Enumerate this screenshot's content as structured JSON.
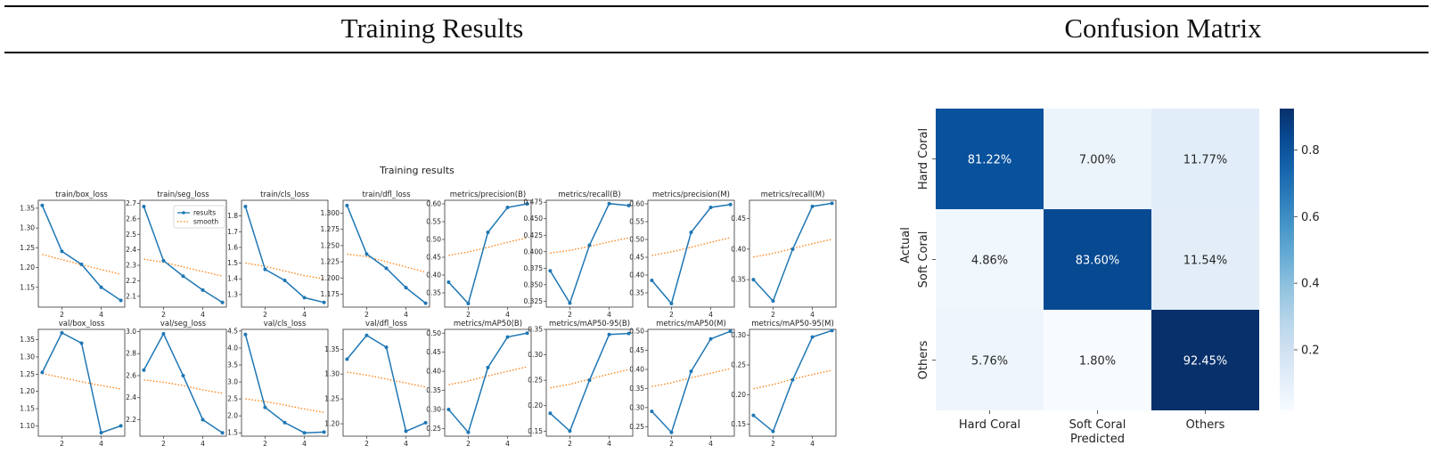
{
  "header": {
    "left_title": "Training Results",
    "right_title": "Confusion Matrix"
  },
  "training": {
    "suptitle": "Training results",
    "legend": [
      "results",
      "smooth"
    ],
    "colors": {
      "results": "#1f77b4",
      "smooth": "#ff7f0e"
    }
  },
  "chart_data": [
    {
      "type": "line",
      "title": "train/box_loss",
      "x": [
        1,
        2,
        3,
        4,
        5
      ],
      "values": [
        1.357,
        1.241,
        1.208,
        1.15,
        1.117
      ],
      "smooth": [
        1.233,
        1.22,
        1.207,
        1.195,
        1.183
      ],
      "xticks": [
        2,
        4
      ],
      "yticks": [
        1.15,
        1.2,
        1.25,
        1.3,
        1.35
      ],
      "ytick_labels": [
        "1.15",
        "1.20",
        "1.25",
        "1.30",
        "1.35"
      ],
      "ylim": [
        1.1,
        1.37
      ]
    },
    {
      "type": "line",
      "title": "train/seg_loss",
      "x": [
        1,
        2,
        3,
        4,
        5
      ],
      "values": [
        2.68,
        2.33,
        2.23,
        2.14,
        2.06
      ],
      "smooth": [
        2.34,
        2.32,
        2.29,
        2.26,
        2.23
      ],
      "xticks": [
        2,
        4
      ],
      "yticks": [
        2.1,
        2.2,
        2.3,
        2.4,
        2.5,
        2.6,
        2.7
      ],
      "ytick_labels": [
        "2.1",
        "2.2",
        "2.3",
        "2.4",
        "2.5",
        "2.6",
        "2.7"
      ],
      "ylim": [
        2.03,
        2.72
      ]
    },
    {
      "type": "line",
      "title": "train/cls_loss",
      "x": [
        1,
        2,
        3,
        4,
        5
      ],
      "values": [
        1.86,
        1.46,
        1.39,
        1.28,
        1.25
      ],
      "smooth": [
        1.5,
        1.48,
        1.45,
        1.42,
        1.4
      ],
      "xticks": [
        2,
        4
      ],
      "yticks": [
        1.3,
        1.4,
        1.5,
        1.6,
        1.7,
        1.8
      ],
      "ytick_labels": [
        "1.3",
        "1.4",
        "1.5",
        "1.6",
        "1.7",
        "1.8"
      ],
      "ylim": [
        1.22,
        1.9
      ]
    },
    {
      "type": "line",
      "title": "train/dfl_loss",
      "x": [
        1,
        2,
        3,
        4,
        5
      ],
      "values": [
        1.312,
        1.237,
        1.215,
        1.185,
        1.161
      ],
      "smooth": [
        1.237,
        1.233,
        1.225,
        1.217,
        1.209
      ],
      "xticks": [
        2,
        4
      ],
      "yticks": [
        1.175,
        1.2,
        1.225,
        1.25,
        1.275,
        1.3
      ],
      "ytick_labels": [
        "1.175",
        "1.200",
        "1.225",
        "1.250",
        "1.275",
        "1.300"
      ],
      "ylim": [
        1.155,
        1.32
      ]
    },
    {
      "type": "line",
      "title": "metrics/precision(B)",
      "x": [
        1,
        2,
        3,
        4,
        5
      ],
      "values": [
        0.38,
        0.32,
        0.52,
        0.59,
        0.6
      ],
      "smooth": [
        0.455,
        0.465,
        0.478,
        0.492,
        0.505
      ],
      "xticks": [
        2,
        4
      ],
      "yticks": [
        0.35,
        0.4,
        0.45,
        0.5,
        0.55,
        0.6
      ],
      "ytick_labels": [
        "0.35",
        "0.40",
        "0.45",
        "0.50",
        "0.55",
        "0.60"
      ],
      "ylim": [
        0.31,
        0.61
      ]
    },
    {
      "type": "line",
      "title": "metrics/recall(B)",
      "x": [
        1,
        2,
        3,
        4,
        5
      ],
      "values": [
        0.371,
        0.322,
        0.41,
        0.473,
        0.47
      ],
      "smooth": [
        0.398,
        0.402,
        0.408,
        0.415,
        0.421
      ],
      "xticks": [
        2,
        4
      ],
      "yticks": [
        0.325,
        0.35,
        0.375,
        0.4,
        0.425,
        0.45,
        0.475
      ],
      "ytick_labels": [
        "0.325",
        "0.350",
        "0.375",
        "0.400",
        "0.425",
        "0.450",
        "0.475"
      ],
      "ylim": [
        0.316,
        0.478
      ]
    },
    {
      "type": "line",
      "title": "metrics/precision(M)",
      "x": [
        1,
        2,
        3,
        4,
        5
      ],
      "values": [
        0.385,
        0.32,
        0.52,
        0.59,
        0.598
      ],
      "smooth": [
        0.455,
        0.465,
        0.478,
        0.492,
        0.505
      ],
      "xticks": [
        2,
        4
      ],
      "yticks": [
        0.35,
        0.4,
        0.45,
        0.5,
        0.55,
        0.6
      ],
      "ytick_labels": [
        "0.35",
        "0.40",
        "0.45",
        "0.50",
        "0.55",
        "0.60"
      ],
      "ylim": [
        0.31,
        0.61
      ]
    },
    {
      "type": "line",
      "title": "metrics/recall(M)",
      "x": [
        1,
        2,
        3,
        4,
        5
      ],
      "values": [
        0.35,
        0.315,
        0.4,
        0.47,
        0.475
      ],
      "smooth": [
        0.387,
        0.393,
        0.401,
        0.409,
        0.416
      ],
      "xticks": [
        2,
        4
      ],
      "yticks": [
        0.35,
        0.4,
        0.45
      ],
      "ytick_labels": [
        "0.35",
        "0.40",
        "0.45"
      ],
      "ylim": [
        0.305,
        0.48
      ]
    },
    {
      "type": "line",
      "title": "val/box_loss",
      "x": [
        1,
        2,
        3,
        4,
        5
      ],
      "values": [
        1.255,
        1.37,
        1.34,
        1.08,
        1.1
      ],
      "smooth": [
        1.252,
        1.24,
        1.228,
        1.217,
        1.207
      ],
      "xticks": [
        2,
        4
      ],
      "yticks": [
        1.1,
        1.15,
        1.2,
        1.25,
        1.3,
        1.35
      ],
      "ytick_labels": [
        "1.10",
        "1.15",
        "1.20",
        "1.25",
        "1.30",
        "1.35"
      ],
      "ylim": [
        1.07,
        1.38
      ]
    },
    {
      "type": "line",
      "title": "val/seg_loss",
      "x": [
        1,
        2,
        3,
        4,
        5
      ],
      "values": [
        2.65,
        2.98,
        2.6,
        2.2,
        2.08
      ],
      "smooth": [
        2.56,
        2.54,
        2.51,
        2.47,
        2.44
      ],
      "xticks": [
        2,
        4
      ],
      "yticks": [
        2.2,
        2.4,
        2.6,
        2.8,
        3.0
      ],
      "ytick_labels": [
        "2.2",
        "2.4",
        "2.6",
        "2.8",
        "3.0"
      ],
      "ylim": [
        2.05,
        3.02
      ]
    },
    {
      "type": "line",
      "title": "val/cls_loss",
      "x": [
        1,
        2,
        3,
        4,
        5
      ],
      "values": [
        4.4,
        2.25,
        1.8,
        1.5,
        1.52
      ],
      "smooth": [
        2.5,
        2.42,
        2.32,
        2.2,
        2.1
      ],
      "xticks": [
        2,
        4
      ],
      "yticks": [
        1.5,
        2.0,
        2.5,
        3.0,
        3.5,
        4.0,
        4.5
      ],
      "ytick_labels": [
        "1.5",
        "2.0",
        "2.5",
        "3.0",
        "3.5",
        "4.0",
        "4.5"
      ],
      "ylim": [
        1.4,
        4.55
      ]
    },
    {
      "type": "line",
      "title": "val/dfl_loss",
      "x": [
        1,
        2,
        3,
        4,
        5
      ],
      "values": [
        1.33,
        1.378,
        1.354,
        1.185,
        1.202
      ],
      "smooth": [
        1.304,
        1.298,
        1.29,
        1.282,
        1.274
      ],
      "xticks": [
        2,
        4
      ],
      "yticks": [
        1.2,
        1.25,
        1.3,
        1.35
      ],
      "ytick_labels": [
        "1.20",
        "1.25",
        "1.30",
        "1.35"
      ],
      "ylim": [
        1.175,
        1.39
      ]
    },
    {
      "type": "line",
      "title": "metrics/mAP50(B)",
      "x": [
        1,
        2,
        3,
        4,
        5
      ],
      "values": [
        0.3,
        0.24,
        0.41,
        0.49,
        0.5
      ],
      "smooth": [
        0.365,
        0.375,
        0.388,
        0.4,
        0.412
      ],
      "xticks": [
        2,
        4
      ],
      "yticks": [
        0.25,
        0.3,
        0.35,
        0.4,
        0.45,
        0.5
      ],
      "ytick_labels": [
        "0.25",
        "0.30",
        "0.35",
        "0.40",
        "0.45",
        "0.50"
      ],
      "ylim": [
        0.23,
        0.51
      ]
    },
    {
      "type": "line",
      "title": "metrics/mAP50-95(B)",
      "x": [
        1,
        2,
        3,
        4,
        5
      ],
      "values": [
        0.185,
        0.15,
        0.25,
        0.34,
        0.342
      ],
      "smooth": [
        0.235,
        0.242,
        0.252,
        0.262,
        0.271
      ],
      "xticks": [
        2,
        4
      ],
      "yticks": [
        0.15,
        0.2,
        0.25,
        0.3,
        0.35
      ],
      "ytick_labels": [
        "0.15",
        "0.20",
        "0.25",
        "0.30",
        "0.35"
      ],
      "ylim": [
        0.14,
        0.35
      ]
    },
    {
      "type": "line",
      "title": "metrics/mAP50(M)",
      "x": [
        1,
        2,
        3,
        4,
        5
      ],
      "values": [
        0.29,
        0.235,
        0.395,
        0.48,
        0.5
      ],
      "smooth": [
        0.355,
        0.365,
        0.378,
        0.39,
        0.402
      ],
      "xticks": [
        2,
        4
      ],
      "yticks": [
        0.25,
        0.3,
        0.35,
        0.4,
        0.45,
        0.5
      ],
      "ytick_labels": [
        "0.25",
        "0.30",
        "0.35",
        "0.40",
        "0.45",
        "0.50"
      ],
      "ylim": [
        0.225,
        0.505
      ]
    },
    {
      "type": "line",
      "title": "metrics/mAP50-95(M)",
      "x": [
        1,
        2,
        3,
        4,
        5
      ],
      "values": [
        0.165,
        0.138,
        0.225,
        0.297,
        0.308
      ],
      "smooth": [
        0.21,
        0.217,
        0.226,
        0.234,
        0.241
      ],
      "xticks": [
        2,
        4
      ],
      "yticks": [
        0.15,
        0.2,
        0.25,
        0.3
      ],
      "ytick_labels": [
        "0.15",
        "0.20",
        "0.25",
        "0.30"
      ],
      "ylim": [
        0.13,
        0.31
      ]
    },
    {
      "type": "heatmap",
      "title": "",
      "rows": [
        "Hard Coral",
        "Soft Coral",
        "Others"
      ],
      "cols": [
        "Hard Coral",
        "Soft Coral",
        "Others"
      ],
      "values": [
        [
          0.8122,
          0.07,
          0.1177
        ],
        [
          0.0486,
          0.836,
          0.1154
        ],
        [
          0.0576,
          0.018,
          0.9245
        ]
      ],
      "labels": [
        [
          "81.22%",
          "7.00%",
          "11.77%"
        ],
        [
          "4.86%",
          "83.60%",
          "11.54%"
        ],
        [
          "5.76%",
          "1.80%",
          "92.45%"
        ]
      ],
      "xlabel": "Predicted",
      "ylabel": "Actual",
      "colorbar_ticks": [
        0.2,
        0.4,
        0.6,
        0.8
      ],
      "colorbar_tick_labels": [
        "0.2",
        "0.4",
        "0.6",
        "0.8"
      ],
      "vmin": 0.018,
      "vmax": 0.9245,
      "colormap": "Blues"
    }
  ]
}
